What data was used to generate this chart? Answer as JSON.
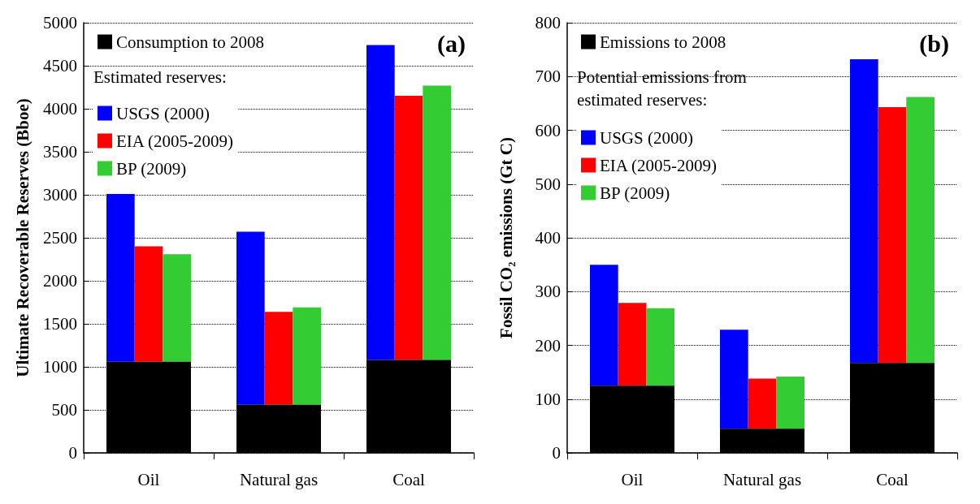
{
  "chart_data": [
    {
      "type": "bar",
      "title": "(a)",
      "ylabel": "Ultimate Recoverable Reserves (Bboe)",
      "categories": [
        "Oil",
        "Natural gas",
        "Coal"
      ],
      "ylim": [
        0,
        5000
      ],
      "yticks": [
        0,
        500,
        1000,
        1500,
        2000,
        2500,
        3000,
        3500,
        4000,
        4500,
        5000
      ],
      "grid": "y",
      "line_style": "dotted",
      "legend": "top left",
      "legend_title": "Estimated reserves:",
      "series": [
        {
          "name": "Consumption to 2008",
          "color": "#000000",
          "values": [
            1060,
            560,
            1080
          ]
        },
        {
          "name": "USGS (2000)",
          "color": "#0000ff",
          "base": [
            1060,
            560,
            1080
          ],
          "values": [
            1950,
            2010,
            3660
          ]
        },
        {
          "name": "EIA (2005-2009)",
          "color": "#ff0000",
          "base": [
            1060,
            560,
            1080
          ],
          "values": [
            1340,
            1080,
            3070
          ]
        },
        {
          "name": "BP (2009)",
          "color": "#33cc33",
          "base": [
            1060,
            560,
            1080
          ],
          "values": [
            1250,
            1130,
            3190
          ]
        }
      ]
    },
    {
      "type": "bar",
      "title": "(b)",
      "ylabel": "Fossil CO₂ emissions (Gt C)",
      "categories": [
        "Oil",
        "Natural gas",
        "Coal"
      ],
      "ylim": [
        0,
        800
      ],
      "yticks": [
        0,
        100,
        200,
        300,
        400,
        500,
        600,
        700,
        800
      ],
      "grid": "y",
      "line_style": "dotted",
      "legend": "top left",
      "legend_title": "Potential emissions from estimated reserves:",
      "series": [
        {
          "name": "Emissions to 2008",
          "color": "#000000",
          "values": [
            125,
            45,
            167
          ]
        },
        {
          "name": "USGS (2000)",
          "color": "#0000ff",
          "base": [
            125,
            45,
            167
          ],
          "values": [
            225,
            184,
            565
          ]
        },
        {
          "name": "EIA (2005-2009)",
          "color": "#ff0000",
          "base": [
            125,
            45,
            167
          ],
          "values": [
            154,
            93,
            476
          ]
        },
        {
          "name": "BP (2009)",
          "color": "#33cc33",
          "base": [
            125,
            45,
            167
          ],
          "values": [
            144,
            97,
            495
          ]
        }
      ]
    }
  ]
}
